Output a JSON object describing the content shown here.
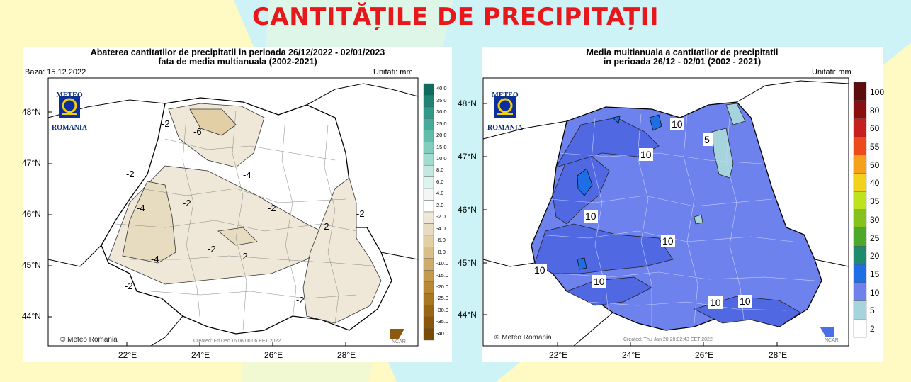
{
  "page_title": "CANTITĂȚILE DE PRECIPITAȚII",
  "left_map": {
    "title_line1": "Abaterea cantitatilor de precipitatii in perioada 26/12/2022 - 02/01/2023",
    "title_line2": "fata de media multianuala (2002-2021)",
    "baza": "Baza: 15.12.2022",
    "units": "Unitati: mm",
    "lat_labels": [
      "48°N",
      "47°N",
      "46°N",
      "45°N",
      "44°N"
    ],
    "lon_labels": [
      "22°E",
      "24°E",
      "26°E",
      "28°E"
    ],
    "contour_labels": [
      "-2",
      "-6",
      "-2",
      "-2",
      "-4",
      "-4",
      "-2",
      "-2",
      "-2",
      "-4",
      "-2",
      "-2",
      "-2",
      "-2"
    ],
    "colorbar": {
      "labels": [
        "40.0",
        "35.0",
        "30.0",
        "25.0",
        "20.0",
        "15.0",
        "10.0",
        "8.0",
        "6.0",
        "4.0",
        "2.0",
        "-2.0",
        "-4.0",
        "-6.0",
        "-8.0",
        "-10.0",
        "-15.0",
        "-20.0",
        "-25.0",
        "-30.0",
        "-35.0",
        "-40.0"
      ],
      "colors": [
        "#0f6b5f",
        "#1f8474",
        "#2f9a88",
        "#46ab98",
        "#63bdaa",
        "#82cdbd",
        "#a2dbcf",
        "#c2e8e0",
        "#dff3ee",
        "#f2f7f6",
        "#ffffff",
        "#efe8d8",
        "#e8dcc0",
        "#e2cfa6",
        "#d9be87",
        "#d0ac6a",
        "#c49a4f",
        "#b88836",
        "#a97622",
        "#9a6515",
        "#8b570d",
        "#7a4a06"
      ]
    },
    "logo_top": "METEO",
    "logo_bottom": "ROMANIA",
    "credit": "© Meteo Romania",
    "created": "Created: Fri Dec 16 06:00:06 EET 2022",
    "ncar": "NCAR"
  },
  "right_map": {
    "title_line1": "Media multianuala a cantitatilor de precipitatii",
    "title_line2": "in perioada 26/12 - 02/01 (2002 - 2021)",
    "units": "Unitati: mm",
    "lat_labels": [
      "48°N",
      "47°N",
      "46°N",
      "45°N",
      "44°N"
    ],
    "lon_labels": [
      "22°E",
      "24°E",
      "26°E",
      "28°E"
    ],
    "contour_labels": [
      "10",
      "10",
      "5",
      "10",
      "10",
      "10",
      "10",
      "10",
      "10"
    ],
    "colorbar": {
      "labels": [
        "100",
        "80",
        "60",
        "55",
        "50",
        "40",
        "35",
        "30",
        "25",
        "20",
        "15",
        "10",
        "5",
        "2"
      ],
      "colors": [
        "#5c0c0c",
        "#8a1010",
        "#c81e1e",
        "#ee4b1c",
        "#f5a11c",
        "#f2d21c",
        "#bde21e",
        "#86c21e",
        "#4ea82a",
        "#1e8c6c",
        "#1e6ee6",
        "#6e82ee",
        "#a6d4dc",
        "#ffffff"
      ]
    },
    "logo_top": "METEO",
    "logo_bottom": "ROMANIA",
    "credit": "© Meteo Romania",
    "created": "Created: Thu Jan 20 20:02:43 EET 2022",
    "ncar": "NCAR"
  }
}
